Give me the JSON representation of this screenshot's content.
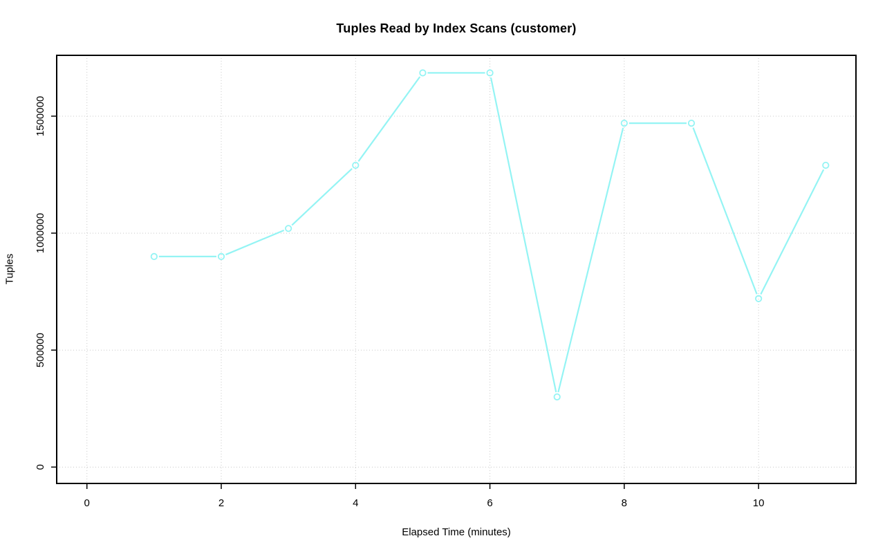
{
  "chart_data": {
    "type": "line",
    "title": "Tuples Read by Index Scans (customer)",
    "xlabel": "Elapsed Time (minutes)",
    "ylabel": "Tuples",
    "x": [
      1,
      2,
      3,
      4,
      5,
      6,
      7,
      8,
      9,
      10,
      11
    ],
    "series": [
      {
        "name": "customer",
        "values": [
          900000,
          900000,
          1020000,
          1290000,
          1685000,
          1685000,
          300000,
          1470000,
          1470000,
          720000,
          1290000
        ]
      }
    ],
    "xticks": {
      "values": [
        0,
        2,
        4,
        6,
        8,
        10
      ],
      "labels": [
        "0",
        "2",
        "4",
        "6",
        "8",
        "10"
      ]
    },
    "yticks": {
      "values": [
        0,
        500000,
        1000000,
        1500000
      ],
      "labels": [
        "0",
        "500000",
        "1000000",
        "1500000"
      ]
    },
    "xlim": [
      -0.45,
      11.45
    ],
    "ylim": [
      -70000,
      1760000
    ],
    "grid": "dotted-both-axes",
    "legend": "none",
    "marker": "open-circle",
    "line_style": "segments-with-gaps-at-markers"
  },
  "style": {
    "series_color": "#94f4f4",
    "grid_color": "#c8c8c8",
    "axis_color": "#000000",
    "text_color": "#000000",
    "background_color": "#ffffff"
  }
}
